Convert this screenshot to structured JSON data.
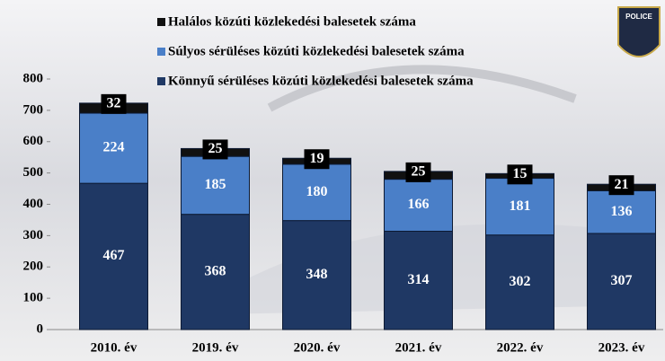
{
  "badge": "POLICE",
  "chart_data": {
    "type": "stacked-bar",
    "categories": [
      "2010. év",
      "2019. év",
      "2020. év",
      "2021. év",
      "2022. év",
      "2023. év"
    ],
    "series": [
      {
        "name": "Könnyű sérüléses közúti közlekedési balesetek száma",
        "color": "#1f3864",
        "values": [
          467,
          368,
          348,
          314,
          302,
          307
        ]
      },
      {
        "name": "Súlyos sérüléses közúti közlekedési balesetek száma",
        "color": "#4a7fc8",
        "values": [
          224,
          185,
          180,
          166,
          181,
          136
        ]
      },
      {
        "name": "Halálos közúti közlekedési balesetek száma",
        "color": "#111111",
        "values": [
          32,
          25,
          19,
          25,
          15,
          21
        ]
      }
    ],
    "ylim": [
      0,
      800
    ],
    "yticks": [
      0,
      100,
      200,
      300,
      400,
      500,
      600,
      700,
      800
    ],
    "grid": false
  }
}
